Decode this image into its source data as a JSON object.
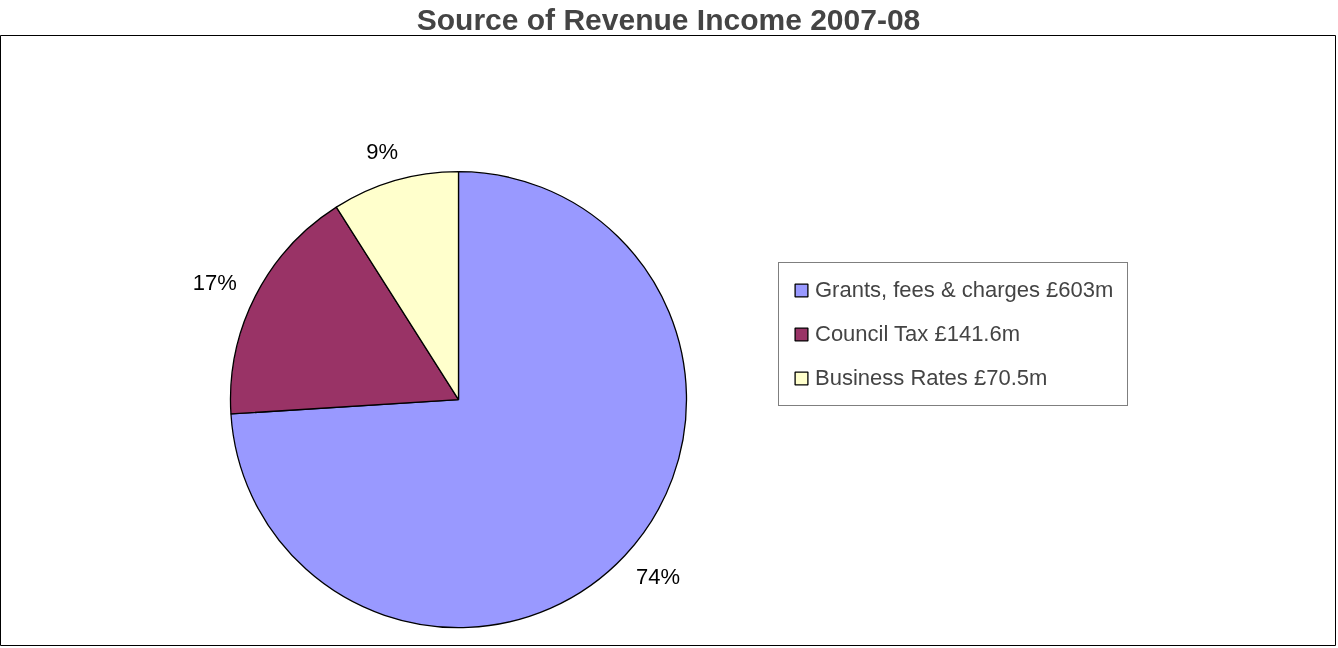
{
  "chart_data": {
    "type": "pie",
    "title": "Source of Revenue Income 2007-08",
    "categories": [
      "Grants, fees & charges £603m",
      "Council Tax £141.6m",
      "Business Rates £70.5m"
    ],
    "values": [
      74,
      17,
      9
    ],
    "colors": [
      "#9999ff",
      "#993366",
      "#ffffcc"
    ],
    "value_labels": [
      "74%",
      "17%",
      "9%"
    ],
    "legend": "right"
  }
}
